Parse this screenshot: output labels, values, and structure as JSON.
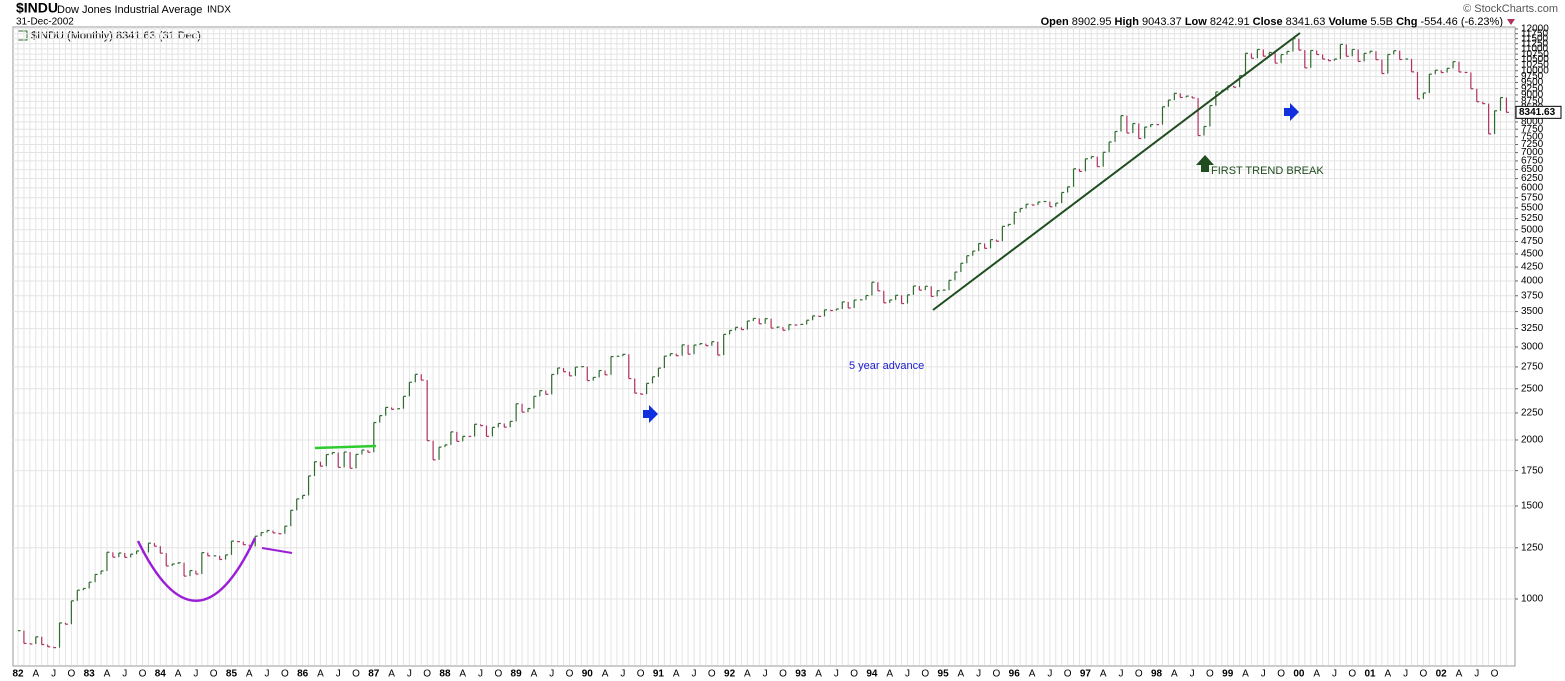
{
  "header": {
    "symbol": "$INDU",
    "name": "Dow Jones Industrial Average",
    "exchange": "INDX",
    "date": "31-Dec-2002",
    "copyright": "© StockCharts.com",
    "stats": [
      {
        "label": "Open",
        "value": "8902.95"
      },
      {
        "label": "High",
        "value": "9043.37"
      },
      {
        "label": "Low",
        "value": "8242.91"
      },
      {
        "label": "Close",
        "value": "8341.63"
      },
      {
        "label": "Volume",
        "value": "5.5B"
      },
      {
        "label": "Chg",
        "value": "-554.46 (-6.23%)"
      }
    ]
  },
  "chart_data": {
    "type": "price-bar",
    "legend_label": "$INDU (Monthly) 8341.63 (31 Dec)",
    "log_scale": true,
    "grid": true,
    "up_color": "#2f6b2f",
    "down_color": "#b0305e",
    "annotations": [
      "5 year advance",
      "FIRST TREND BREAK"
    ],
    "categories": [
      "82",
      null,
      null,
      "A",
      null,
      null,
      "J",
      null,
      null,
      "O",
      null,
      null,
      "83",
      null,
      null,
      "A",
      null,
      null,
      "J",
      null,
      null,
      "O",
      null,
      null,
      "84",
      null,
      null,
      "A",
      null,
      null,
      "J",
      null,
      null,
      "O",
      null,
      null,
      "85",
      null,
      null,
      "A",
      null,
      null,
      "J",
      null,
      null,
      "O",
      null,
      null,
      "86",
      null,
      null,
      "A",
      null,
      null,
      "J",
      null,
      null,
      "O",
      null,
      null,
      "87",
      null,
      null,
      "A",
      null,
      null,
      "J",
      null,
      null,
      "O",
      null,
      null,
      "88",
      null,
      null,
      "A",
      null,
      null,
      "J",
      null,
      null,
      "O",
      null,
      null,
      "89",
      null,
      null,
      "A",
      null,
      null,
      "J",
      null,
      null,
      "O",
      null,
      null,
      "90",
      null,
      null,
      "A",
      null,
      null,
      "J",
      null,
      null,
      "O",
      null,
      null,
      "91",
      null,
      null,
      "A",
      null,
      null,
      "J",
      null,
      null,
      "O",
      null,
      null,
      "92",
      null,
      null,
      "A",
      null,
      null,
      "J",
      null,
      null,
      "O",
      null,
      null,
      "93",
      null,
      null,
      "A",
      null,
      null,
      "J",
      null,
      null,
      "O",
      null,
      null,
      "94",
      null,
      null,
      "A",
      null,
      null,
      "J",
      null,
      null,
      "O",
      null,
      null,
      "95",
      null,
      null,
      "A",
      null,
      null,
      "J",
      null,
      null,
      "O",
      null,
      null,
      "96",
      null,
      null,
      "A",
      null,
      null,
      "J",
      null,
      null,
      "O",
      null,
      null,
      "97",
      null,
      null,
      "A",
      null,
      null,
      "J",
      null,
      null,
      "O",
      null,
      null,
      "98",
      null,
      null,
      "A",
      null,
      null,
      "J",
      null,
      null,
      "O",
      null,
      null,
      "99",
      null,
      null,
      "A",
      null,
      null,
      "J",
      null,
      null,
      "O",
      null,
      null,
      "00",
      null,
      null,
      "A",
      null,
      null,
      "J",
      null,
      null,
      "O",
      null,
      null,
      "01",
      null,
      null,
      "A",
      null,
      null,
      "J",
      null,
      null,
      "O",
      null,
      null,
      "02",
      null,
      null,
      "A",
      null,
      null,
      "J",
      null,
      null,
      "O",
      null,
      null
    ],
    "values": [
      871,
      824,
      822,
      848,
      820,
      812,
      809,
      901,
      896,
      992,
      1039,
      1047,
      1076,
      1113,
      1130,
      1226,
      1200,
      1222,
      1199,
      1216,
      1233,
      1225,
      1276,
      1259,
      1221,
      1155,
      1165,
      1171,
      1105,
      1132,
      1115,
      1224,
      1207,
      1207,
      1188,
      1212,
      1287,
      1284,
      1267,
      1258,
      1315,
      1336,
      1348,
      1334,
      1329,
      1374,
      1472,
      1547,
      1571,
      1710,
      1819,
      1784,
      1877,
      1893,
      1775,
      1898,
      1768,
      1878,
      1914,
      1896,
      2158,
      2224,
      2305,
      2286,
      2292,
      2419,
      2572,
      2663,
      2596,
      1994,
      1834,
      1939,
      1958,
      2072,
      1988,
      2032,
      2031,
      2142,
      2129,
      2032,
      2113,
      2149,
      2115,
      2169,
      2342,
      2258,
      2294,
      2419,
      2480,
      2440,
      2661,
      2737,
      2693,
      2645,
      2748,
      2753,
      2591,
      2627,
      2707,
      2657,
      2877,
      2881,
      2905,
      2614,
      2453,
      2442,
      2560,
      2634,
      2736,
      2882,
      2914,
      2888,
      3028,
      2907,
      3025,
      3044,
      3017,
      3069,
      2895,
      3169,
      3224,
      3268,
      3236,
      3359,
      3397,
      3319,
      3394,
      3257,
      3272,
      3226,
      3306,
      3301,
      3310,
      3371,
      3435,
      3428,
      3527,
      3516,
      3540,
      3651,
      3555,
      3681,
      3684,
      3754,
      3978,
      3832,
      3636,
      3682,
      3758,
      3625,
      3765,
      3913,
      3843,
      3908,
      3739,
      3834,
      3844,
      4011,
      4158,
      4321,
      4465,
      4556,
      4709,
      4611,
      4789,
      4756,
      5075,
      5117,
      5395,
      5486,
      5588,
      5569,
      5643,
      5655,
      5529,
      5616,
      5882,
      6029,
      6522,
      6448,
      6813,
      6878,
      6584,
      7009,
      7331,
      7673,
      8223,
      7622,
      7945,
      7442,
      7823,
      7908,
      7907,
      8546,
      8800,
      9063,
      8900,
      8952,
      8883,
      7539,
      7843,
      8592,
      9117,
      9181,
      9359,
      9307,
      9786,
      10789,
      10560,
      10971,
      10655,
      10829,
      10337,
      10730,
      10878,
      11497,
      10941,
      10128,
      10922,
      10734,
      10522,
      10448,
      10522,
      11215,
      10651,
      10971,
      10415,
      10787,
      10887,
      10495,
      9879,
      10735,
      10912,
      10502,
      10523,
      9950,
      8848,
      9075,
      9852,
      10022,
      9920,
      10106,
      10404,
      9946,
      9925,
      9243,
      8737,
      8664,
      7592,
      8397,
      8896,
      8341.63
    ],
    "ylim": [
      750,
      12100
    ],
    "yticks": [
      1000,
      1250,
      1500,
      1750,
      2000,
      2250,
      2500,
      2750,
      3000,
      3250,
      3500,
      3750,
      4000,
      4250,
      4500,
      4750,
      5000,
      5250,
      5500,
      5750,
      6000,
      6250,
      6500,
      6750,
      7000,
      7250,
      7500,
      7750,
      8000,
      8250,
      8500,
      8750,
      9000,
      9250,
      9500,
      9750,
      10000,
      10250,
      10500,
      10750,
      11000,
      11250,
      11500,
      11750,
      12000
    ]
  }
}
